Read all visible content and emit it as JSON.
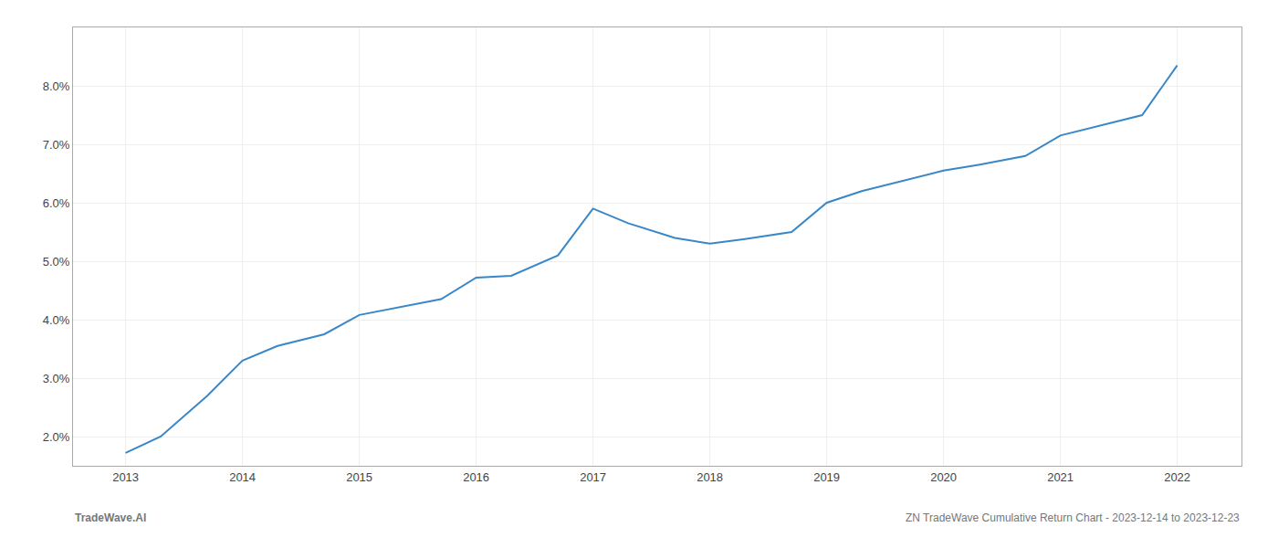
{
  "chart_data": {
    "type": "line",
    "x": [
      2013,
      2013.3,
      2013.7,
      2014,
      2014.3,
      2014.7,
      2015,
      2015.3,
      2015.7,
      2016,
      2016.3,
      2016.7,
      2017,
      2017.3,
      2017.7,
      2018,
      2018.3,
      2018.7,
      2019,
      2019.3,
      2019.7,
      2020,
      2020.3,
      2020.7,
      2021,
      2021.3,
      2021.7,
      2022
    ],
    "values": [
      1.72,
      2.0,
      2.7,
      3.3,
      3.55,
      3.75,
      4.08,
      4.2,
      4.35,
      4.72,
      4.75,
      5.1,
      5.9,
      5.65,
      5.4,
      5.3,
      5.38,
      5.5,
      6.0,
      6.2,
      6.4,
      6.55,
      6.65,
      6.8,
      7.15,
      7.3,
      7.5,
      8.35
    ],
    "color": "#3a87c8",
    "xlim": [
      2012.55,
      2022.55
    ],
    "xticks": [
      2013,
      2014,
      2015,
      2016,
      2017,
      2018,
      2019,
      2020,
      2021,
      2022
    ],
    "ylim": [
      1.5,
      9.0
    ],
    "yticks": [
      {
        "value": 2.0,
        "label": "2.0%"
      },
      {
        "value": 3.0,
        "label": "3.0%"
      },
      {
        "value": 4.0,
        "label": "4.0%"
      },
      {
        "value": 5.0,
        "label": "5.0%"
      },
      {
        "value": 6.0,
        "label": "6.0%"
      },
      {
        "value": 7.0,
        "label": "7.0%"
      },
      {
        "value": 8.0,
        "label": "8.0%"
      }
    ],
    "grid": true,
    "annotations": [
      "TradeWave.AI",
      "ZN TradeWave Cumulative Return Chart - 2023-12-14 to 2023-12-23"
    ]
  }
}
